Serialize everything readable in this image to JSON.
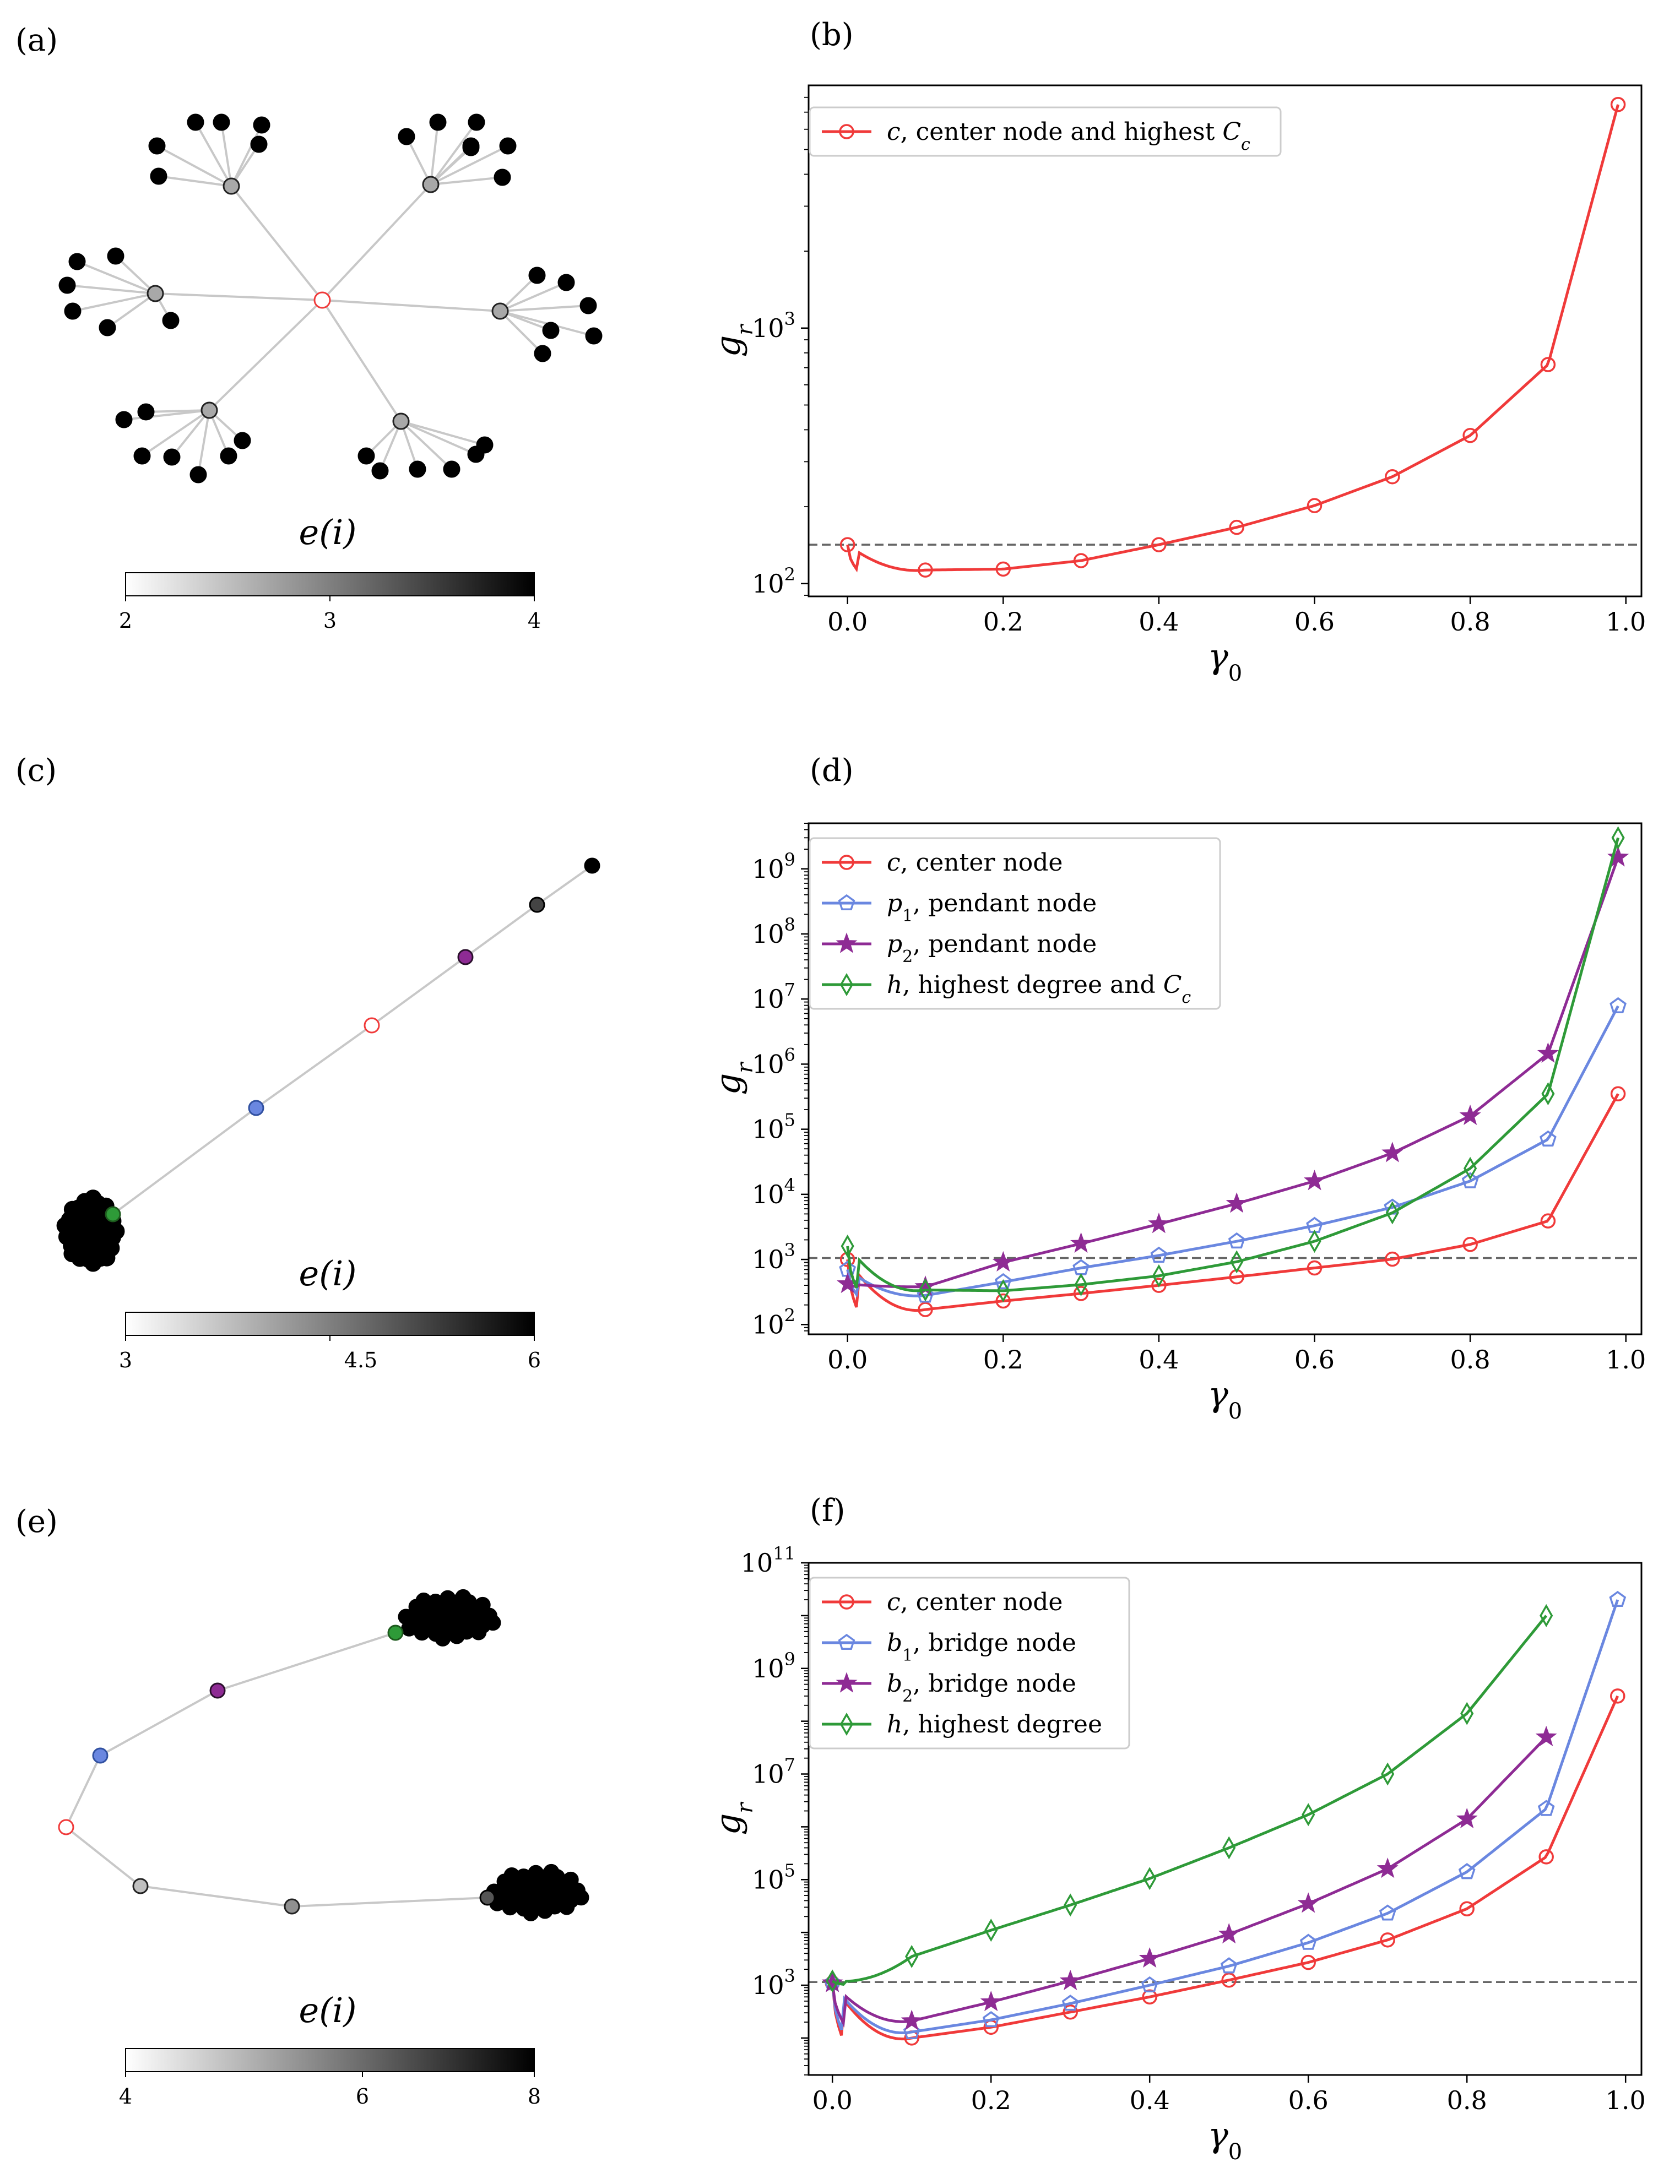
{
  "panels": {
    "a": "(a)",
    "b": "(b)",
    "c": "(c)",
    "d": "(d)",
    "e": "(e)",
    "f": "(f)"
  },
  "colorbar_label": "e(i)",
  "colorbar_a_ticks": [
    "2",
    "3",
    "4"
  ],
  "colorbar_c_ticks": [
    "3",
    "4.5",
    "6"
  ],
  "colorbar_e_ticks": [
    "4",
    "6",
    "8"
  ],
  "colors": {
    "c": "#f03a3a",
    "p1": "#6a87e0",
    "p2": "#8e2b94",
    "h": "#2e9a38",
    "edge": "#c8c8c8",
    "ref": "#666666"
  },
  "chart_data": [
    {
      "panel": "b",
      "type": "line",
      "xlabel": "γ0",
      "ylabel": "g_r",
      "scale": "log",
      "xlim": [
        -0.05,
        1.02
      ],
      "ylim_exp": [
        1.95,
        3.95
      ],
      "x_ticks": [
        "0.0",
        "0.2",
        "0.4",
        "0.6",
        "0.8",
        "1.0"
      ],
      "y_ticks": [
        "10^2",
        "10^3"
      ],
      "reference_line": 142,
      "series": [
        {
          "key": "c",
          "name": "c, center node and highest C_c",
          "marker": "circle",
          "x": [
            0,
            0.1,
            0.2,
            0.3,
            0.4,
            0.5,
            0.6,
            0.7,
            0.8,
            0.9,
            0.99
          ],
          "y": [
            142,
            113,
            114,
            123,
            142,
            166,
            202,
            262,
            380,
            720,
            7500
          ]
        }
      ]
    },
    {
      "panel": "d",
      "type": "line",
      "xlabel": "γ0",
      "ylabel": "g_r",
      "scale": "log",
      "xlim": [
        -0.05,
        1.02
      ],
      "ylim_exp": [
        1.85,
        9.7
      ],
      "x_ticks": [
        "0.0",
        "0.2",
        "0.4",
        "0.6",
        "0.8",
        "1.0"
      ],
      "y_ticks": [
        "10^2",
        "10^3",
        "10^4",
        "10^5",
        "10^6",
        "10^7",
        "10^8",
        "10^9"
      ],
      "reference_line": 1050,
      "series": [
        {
          "key": "c",
          "name": "c, center node",
          "marker": "circle",
          "x": [
            0,
            0.1,
            0.2,
            0.3,
            0.4,
            0.5,
            0.6,
            0.7,
            0.8,
            0.9,
            0.99
          ],
          "y": [
            1000,
            170,
            230,
            300,
            400,
            540,
            740,
            1010,
            1700,
            3900,
            350000
          ]
        },
        {
          "key": "p1",
          "name": "p1, pendant node",
          "marker": "pentagon",
          "x": [
            0,
            0.1,
            0.2,
            0.3,
            0.4,
            0.5,
            0.6,
            0.7,
            0.8,
            0.9,
            0.99
          ],
          "y": [
            700,
            280,
            450,
            740,
            1150,
            1900,
            3300,
            6300,
            16000,
            70000,
            7800000
          ]
        },
        {
          "key": "p2",
          "name": "p2, pendant node",
          "marker": "star",
          "x": [
            0,
            0.1,
            0.2,
            0.3,
            0.4,
            0.5,
            0.6,
            0.7,
            0.8,
            0.9,
            0.99
          ],
          "y": [
            420,
            380,
            900,
            1750,
            3500,
            7200,
            16000,
            43000,
            160000,
            1450000,
            1500000000
          ]
        },
        {
          "key": "h",
          "name": "h, highest degree and C_c",
          "marker": "diamond",
          "x": [
            0,
            0.1,
            0.2,
            0.3,
            0.4,
            0.5,
            0.6,
            0.7,
            0.8,
            0.9,
            0.99
          ],
          "y": [
            1600,
            340,
            330,
            410,
            560,
            920,
            1900,
            5200,
            25000,
            350000,
            3000000000
          ]
        }
      ]
    },
    {
      "panel": "f",
      "type": "line",
      "xlabel": "γ0",
      "ylabel": "g_r",
      "scale": "log",
      "xlim": [
        -0.03,
        1.02
      ],
      "ylim_exp": [
        1.3,
        11
      ],
      "x_ticks": [
        "0.0",
        "0.2",
        "0.4",
        "0.6",
        "0.8",
        "1.0"
      ],
      "y_ticks": [
        "10^3",
        "10^5",
        "10^7",
        "10^9",
        "10^11"
      ],
      "reference_line": 1150,
      "series": [
        {
          "key": "c",
          "name": "c, center node",
          "marker": "circle",
          "x": [
            0,
            0.1,
            0.2,
            0.3,
            0.4,
            0.5,
            0.6,
            0.7,
            0.8,
            0.9,
            0.99
          ],
          "y": [
            1100,
            100,
            160,
            310,
            600,
            1250,
            2700,
            7200,
            28000,
            270000,
            300000000
          ]
        },
        {
          "key": "p1",
          "name": "b1, bridge node",
          "marker": "pentagon",
          "x": [
            0,
            0.1,
            0.2,
            0.3,
            0.4,
            0.5,
            0.6,
            0.7,
            0.8,
            0.9,
            0.99
          ],
          "y": [
            1100,
            130,
            220,
            450,
            1000,
            2300,
            6400,
            23000,
            140000,
            2200000,
            20000000000
          ]
        },
        {
          "key": "p2",
          "name": "b2, bridge node",
          "marker": "star",
          "x": [
            0,
            0.1,
            0.2,
            0.3,
            0.4,
            0.5,
            0.6,
            0.7,
            0.8,
            0.9
          ],
          "y": [
            1100,
            210,
            480,
            1200,
            3200,
            9200,
            35000,
            160000,
            1400000,
            50000000
          ]
        },
        {
          "key": "h",
          "name": "h, highest degree",
          "marker": "diamond",
          "x": [
            0,
            0.1,
            0.2,
            0.3,
            0.4,
            0.5,
            0.6,
            0.7,
            0.8,
            0.9
          ],
          "y": [
            1200,
            3500,
            11000,
            33000,
            105000,
            400000,
            1700000,
            10000000,
            140000000,
            10000000000
          ]
        }
      ]
    }
  ]
}
